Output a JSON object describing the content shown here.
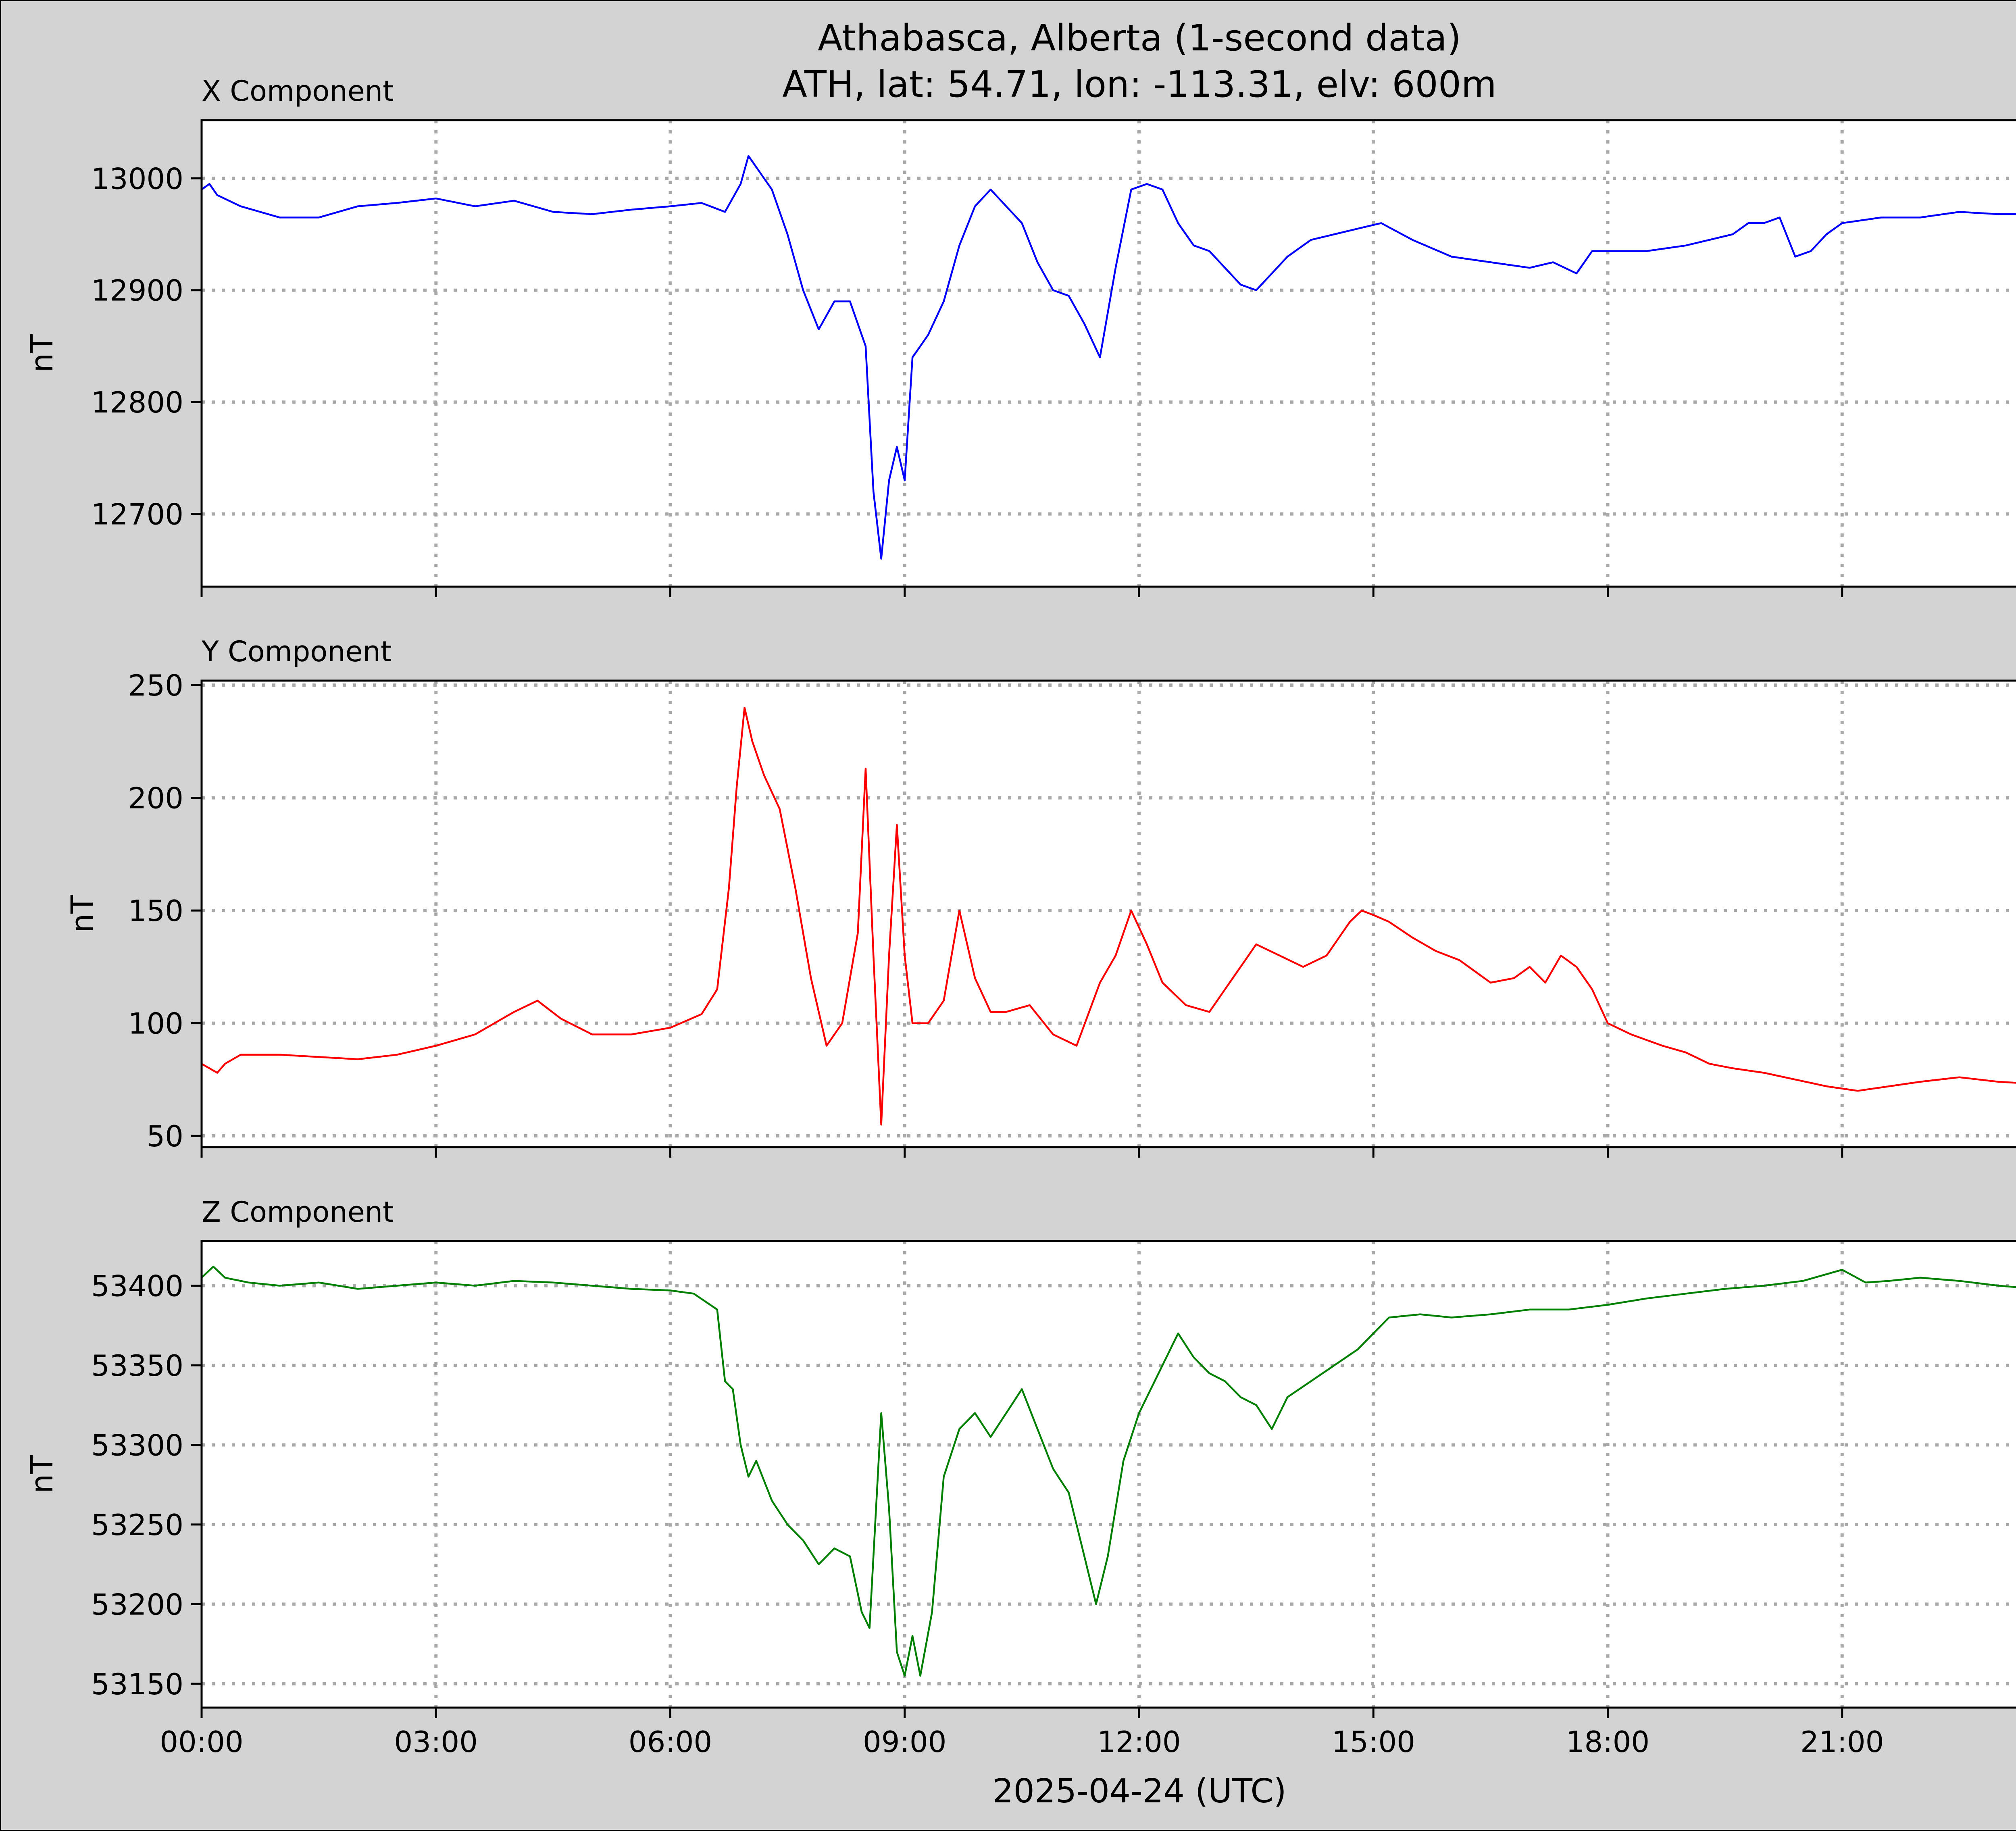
{
  "figure": {
    "title_line1": "Athabasca, Alberta (1-second data)",
    "title_line2": "ATH, lat: 54.71, lon: -113.31, elv: 600m",
    "xlabel": "2025-04-24 (UTC)",
    "background_color": "#d3d3d3",
    "grid": "dotted",
    "x_tick_labels": [
      "00:00",
      "03:00",
      "06:00",
      "09:00",
      "12:00",
      "15:00",
      "18:00",
      "21:00"
    ]
  },
  "chart_data": [
    {
      "type": "line",
      "title": "X Component",
      "xlabel": "",
      "ylabel": "nT",
      "color": "#0000ff",
      "xlim": [
        0,
        24
      ],
      "ylim": [
        12635,
        13052
      ],
      "y_ticks": [
        12700,
        12800,
        12900,
        13000
      ],
      "x_ticks": [
        0,
        3,
        6,
        9,
        12,
        15,
        18,
        21
      ],
      "x_tick_labels": [
        "",
        "",
        "",
        "",
        "",
        "",
        "",
        ""
      ],
      "series": [
        {
          "name": "",
          "x": [
            0,
            0.1,
            0.2,
            0.5,
            1,
            1.5,
            2,
            2.5,
            3,
            3.5,
            4,
            4.5,
            5,
            5.5,
            6,
            6.4,
            6.7,
            6.9,
            7.0,
            7.15,
            7.3,
            7.5,
            7.7,
            7.9,
            8.1,
            8.3,
            8.5,
            8.6,
            8.7,
            8.8,
            8.9,
            9.0,
            9.1,
            9.3,
            9.5,
            9.7,
            9.9,
            10.1,
            10.3,
            10.5,
            10.7,
            10.9,
            11.1,
            11.3,
            11.5,
            11.7,
            11.9,
            12.1,
            12.3,
            12.5,
            12.7,
            12.9,
            13.1,
            13.3,
            13.5,
            13.7,
            13.9,
            14.2,
            14.5,
            14.8,
            15.1,
            15.5,
            16,
            16.5,
            17,
            17.3,
            17.6,
            17.8,
            18,
            18.5,
            19,
            19.3,
            19.6,
            19.8,
            20,
            20.2,
            20.4,
            20.6,
            20.8,
            21,
            21.5,
            22,
            22.5,
            23,
            23.5,
            24
          ],
          "y": [
            12990,
            12995,
            12985,
            12975,
            12965,
            12965,
            12975,
            12978,
            12982,
            12975,
            12980,
            12970,
            12968,
            12972,
            12975,
            12978,
            12970,
            12995,
            13020,
            13005,
            12990,
            12950,
            12900,
            12865,
            12890,
            12890,
            12850,
            12720,
            12660,
            12730,
            12760,
            12730,
            12840,
            12860,
            12890,
            12940,
            12975,
            12990,
            12975,
            12960,
            12925,
            12900,
            12895,
            12870,
            12840,
            12920,
            12990,
            12995,
            12990,
            12960,
            12940,
            12935,
            12920,
            12905,
            12900,
            12915,
            12930,
            12945,
            12950,
            12955,
            12960,
            12945,
            12930,
            12925,
            12920,
            12925,
            12915,
            12935,
            12935,
            12935,
            12940,
            12945,
            12950,
            12960,
            12960,
            12965,
            12930,
            12935,
            12950,
            12960,
            12965,
            12965,
            12970,
            12968,
            12968,
            12968
          ]
        }
      ]
    },
    {
      "type": "line",
      "title": "Y Component",
      "xlabel": "",
      "ylabel": "nT",
      "color": "#ff0000",
      "xlim": [
        0,
        24
      ],
      "ylim": [
        45,
        252
      ],
      "y_ticks": [
        50,
        100,
        150,
        200,
        250
      ],
      "x_ticks": [
        0,
        3,
        6,
        9,
        12,
        15,
        18,
        21
      ],
      "x_tick_labels": [
        "",
        "",
        "",
        "",
        "",
        "",
        "",
        ""
      ],
      "series": [
        {
          "name": "",
          "x": [
            0,
            0.1,
            0.2,
            0.3,
            0.5,
            1,
            1.5,
            2,
            2.5,
            3,
            3.5,
            4,
            4.3,
            4.6,
            5,
            5.5,
            6,
            6.4,
            6.6,
            6.75,
            6.85,
            6.95,
            7.05,
            7.2,
            7.4,
            7.6,
            7.8,
            8.0,
            8.2,
            8.4,
            8.5,
            8.6,
            8.7,
            8.8,
            8.9,
            9.0,
            9.1,
            9.3,
            9.5,
            9.7,
            9.9,
            10.1,
            10.3,
            10.6,
            10.9,
            11.2,
            11.5,
            11.7,
            11.9,
            12.1,
            12.3,
            12.6,
            12.9,
            13.2,
            13.5,
            13.8,
            14.1,
            14.4,
            14.7,
            14.85,
            15.0,
            15.2,
            15.5,
            15.8,
            16.1,
            16.5,
            16.8,
            17.0,
            17.2,
            17.4,
            17.6,
            17.8,
            18.0,
            18.3,
            18.7,
            19.0,
            19.3,
            19.6,
            20.0,
            20.4,
            20.8,
            21.2,
            21.6,
            22.0,
            22.5,
            23.0,
            23.5,
            24.0
          ],
          "y": [
            82,
            80,
            78,
            82,
            86,
            86,
            85,
            84,
            86,
            90,
            95,
            105,
            110,
            102,
            95,
            95,
            98,
            104,
            115,
            160,
            205,
            240,
            225,
            210,
            195,
            160,
            120,
            90,
            100,
            140,
            213,
            130,
            55,
            130,
            188,
            130,
            100,
            100,
            110,
            150,
            120,
            105,
            105,
            108,
            95,
            90,
            118,
            130,
            150,
            135,
            118,
            108,
            105,
            120,
            135,
            130,
            125,
            130,
            145,
            150,
            148,
            145,
            138,
            132,
            128,
            118,
            120,
            125,
            118,
            130,
            125,
            115,
            100,
            95,
            90,
            87,
            82,
            80,
            78,
            75,
            72,
            70,
            72,
            74,
            76,
            74,
            73,
            77
          ]
        }
      ]
    },
    {
      "type": "line",
      "title": "Z Component",
      "xlabel": "",
      "ylabel": "nT",
      "color": "#008000",
      "xlim": [
        0,
        24
      ],
      "ylim": [
        53135,
        53428
      ],
      "y_ticks": [
        53150,
        53200,
        53250,
        53300,
        53350,
        53400
      ],
      "x_ticks": [
        0,
        3,
        6,
        9,
        12,
        15,
        18,
        21
      ],
      "x_tick_labels": [
        "00:00",
        "03:00",
        "06:00",
        "09:00",
        "12:00",
        "15:00",
        "18:00",
        "21:00"
      ],
      "series": [
        {
          "name": "",
          "x": [
            0,
            0.15,
            0.3,
            0.6,
            1,
            1.5,
            2,
            2.5,
            3,
            3.5,
            4,
            4.5,
            5,
            5.5,
            6,
            6.3,
            6.6,
            6.7,
            6.8,
            6.9,
            7.0,
            7.1,
            7.3,
            7.5,
            7.7,
            7.9,
            8.1,
            8.3,
            8.45,
            8.55,
            8.7,
            8.8,
            8.9,
            9.0,
            9.1,
            9.2,
            9.35,
            9.5,
            9.7,
            9.9,
            10.1,
            10.3,
            10.5,
            10.7,
            10.9,
            11.1,
            11.3,
            11.45,
            11.6,
            11.8,
            12.0,
            12.2,
            12.5,
            12.7,
            12.9,
            13.1,
            13.3,
            13.5,
            13.7,
            13.9,
            14.2,
            14.5,
            14.8,
            15.2,
            15.6,
            16,
            16.5,
            17,
            17.5,
            18,
            18.5,
            19,
            19.5,
            20,
            20.5,
            21,
            21.3,
            21.6,
            22,
            22.5,
            23,
            23.5,
            24
          ],
          "y": [
            53405,
            53412,
            53405,
            53402,
            53400,
            53402,
            53398,
            53400,
            53402,
            53400,
            53403,
            53402,
            53400,
            53398,
            53397,
            53395,
            53385,
            53340,
            53335,
            53300,
            53280,
            53290,
            53265,
            53250,
            53240,
            53225,
            53235,
            53230,
            53195,
            53185,
            53320,
            53260,
            53170,
            53155,
            53180,
            53155,
            53195,
            53280,
            53310,
            53320,
            53305,
            53320,
            53335,
            53310,
            53285,
            53270,
            53230,
            53200,
            53230,
            53290,
            53320,
            53340,
            53370,
            53355,
            53345,
            53340,
            53330,
            53325,
            53310,
            53330,
            53340,
            53350,
            53360,
            53380,
            53382,
            53380,
            53382,
            53385,
            53385,
            53388,
            53392,
            53395,
            53398,
            53400,
            53403,
            53410,
            53402,
            53403,
            53405,
            53403,
            53400,
            53398,
            53397
          ]
        }
      ]
    }
  ]
}
